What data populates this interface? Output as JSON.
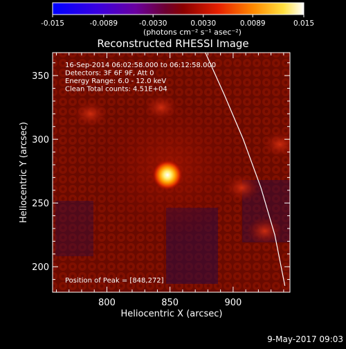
{
  "chart_data": {
    "type": "heatmap",
    "title": "Reconstructed RHESSI Image",
    "xlabel": "Heliocentric X (arcsec)",
    "ylabel": "Heliocentric Y (arcsec)",
    "xlim": [
      757,
      945
    ],
    "ylim": [
      180,
      368
    ],
    "x_ticks": [
      800,
      850,
      900
    ],
    "y_ticks": [
      200,
      250,
      300,
      350
    ],
    "colorbar": {
      "ticks": [
        "-0.015",
        "-0.0089",
        "-0.0030",
        "0.0030",
        "0.0089",
        "0.015"
      ],
      "range": [
        -0.015,
        0.015
      ],
      "unit_label": "(photons cm⁻² s⁻¹ asec⁻²)"
    },
    "annotations": [
      "16-Sep-2014 06:02:58.000 to 06:12:58.000",
      "Detectors: 3F 6F 9F, Att 0",
      "Energy Range: 6.0 - 12.0 keV",
      "Clean    Total counts: 4.51E+04"
    ],
    "peak_label": "Position of Peak = [848,272]",
    "peak": {
      "x": 848,
      "y": 272,
      "value": 0.015
    },
    "secondary_sources": [
      {
        "x": 843,
        "y": 325,
        "value": 0.0045
      },
      {
        "x": 787,
        "y": 320,
        "value": 0.003
      },
      {
        "x": 937,
        "y": 296,
        "value": 0.0035
      },
      {
        "x": 907,
        "y": 262,
        "value": 0.003
      },
      {
        "x": 925,
        "y": 228,
        "value": 0.0025
      }
    ],
    "limb_curve": [
      {
        "x": 878,
        "y": 368
      },
      {
        "x": 893,
        "y": 335
      },
      {
        "x": 908,
        "y": 300
      },
      {
        "x": 922,
        "y": 262
      },
      {
        "x": 933,
        "y": 225
      },
      {
        "x": 941,
        "y": 185
      }
    ]
  },
  "footer": {
    "date": "9-May-2017 09:03"
  }
}
